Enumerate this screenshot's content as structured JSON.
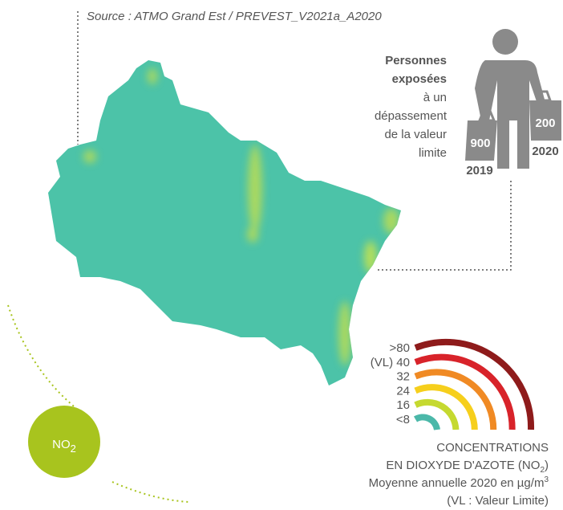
{
  "source": "Source : ATMO Grand Est / PREVEST_V2021a_A2020",
  "exposure": {
    "heading": [
      "Personnes",
      "exposées"
    ],
    "text": [
      "à un",
      "dépassement",
      "de la valeur",
      "limite"
    ],
    "bags": [
      {
        "value": 900,
        "year": "2019"
      },
      {
        "value": 200,
        "year": "2020"
      }
    ]
  },
  "legend": {
    "items": [
      {
        "label": ">80",
        "color": "#8e1b1b"
      },
      {
        "label": "(VL) 40",
        "color": "#d8232a"
      },
      {
        "label": "32",
        "color": "#f08a24"
      },
      {
        "label": "24",
        "color": "#f6cf1c"
      },
      {
        "label": "16",
        "color": "#c5d930"
      },
      {
        "label": "<8",
        "color": "#4bb8a9"
      }
    ],
    "caption": {
      "line1": "CONCENTRATIONS",
      "line2": "EN DIOXYDE D'AZOTE (NO",
      "line2_sub": "2",
      "line2_end": ")",
      "line3": "Moyenne annuelle 2020 en µg/m",
      "line3_sup": "3",
      "line4": "(VL : Valeur Limite)"
    }
  },
  "badge": {
    "text": "NO",
    "sub": "2"
  }
}
